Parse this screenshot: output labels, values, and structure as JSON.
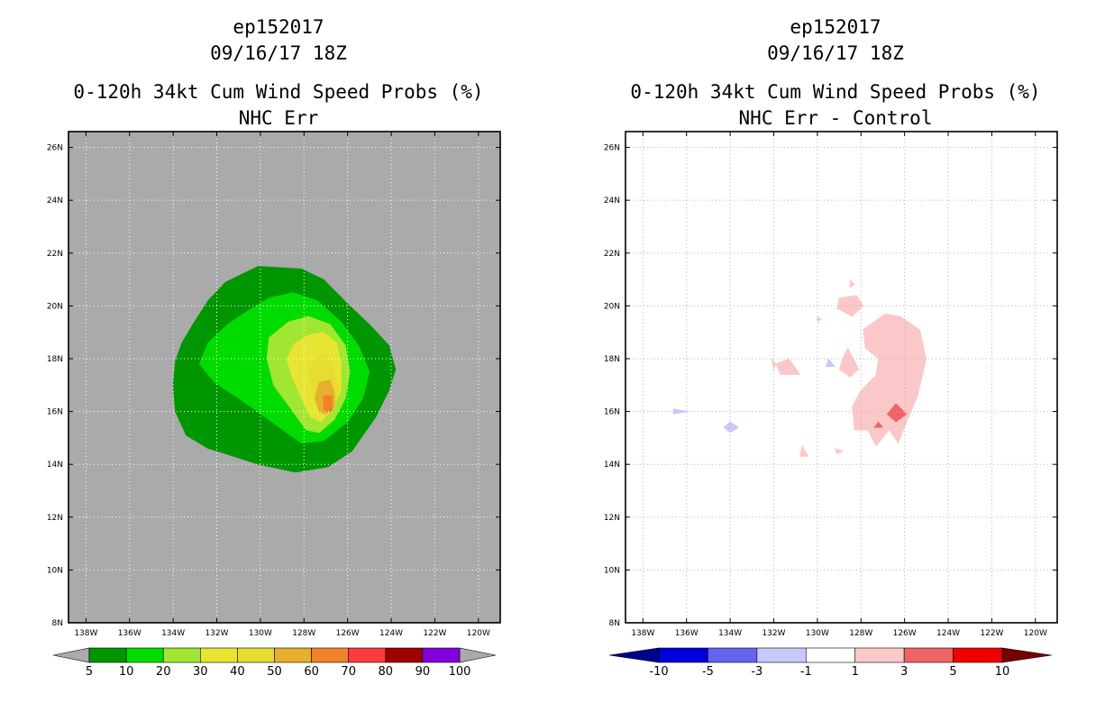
{
  "chart_data": [
    {
      "type": "contour-map",
      "storm_id": "ep152017",
      "datetime": "09/16/17 18Z",
      "title": "0-120h 34kt Cum Wind Speed Probs (%)",
      "subtitle": "NHC Err",
      "xlabel": "",
      "ylabel": "",
      "lon_ticks": [
        "138W",
        "136W",
        "134W",
        "132W",
        "130W",
        "128W",
        "126W",
        "124W",
        "122W",
        "120W"
      ],
      "lat_ticks": [
        "8N",
        "10N",
        "12N",
        "14N",
        "16N",
        "18N",
        "20N",
        "22N",
        "24N",
        "26N"
      ],
      "xlim_deg_east": [
        -138.8,
        -119
      ],
      "ylim_deg_north": [
        8,
        26.6
      ],
      "grid": true,
      "background_color": "#aaaaaa",
      "contour_levels": [
        5,
        10,
        20,
        30,
        40,
        50,
        60,
        70,
        80,
        90,
        100
      ],
      "colors": [
        "#009600",
        "#00dc00",
        "#a0e632",
        "#e6e632",
        "#e6dc32",
        "#e6af2d",
        "#f08228",
        "#fa3c3c",
        "#a00000",
        "#8200dc"
      ],
      "features": [
        {
          "level": 5,
          "polygon": [
            [
              -130.1,
              21.5
            ],
            [
              -128.1,
              21.4
            ],
            [
              -127.1,
              21.0
            ],
            [
              -125.9,
              20.0
            ],
            [
              -125.0,
              19.3
            ],
            [
              -124.1,
              18.5
            ],
            [
              -123.8,
              17.6
            ],
            [
              -124.1,
              16.8
            ],
            [
              -124.7,
              15.8
            ],
            [
              -125.8,
              14.5
            ],
            [
              -126.9,
              13.9
            ],
            [
              -128.4,
              13.7
            ],
            [
              -130.1,
              14.0
            ],
            [
              -131.6,
              14.4
            ],
            [
              -132.4,
              14.6
            ],
            [
              -133.4,
              15.1
            ],
            [
              -133.9,
              16.0
            ],
            [
              -134.0,
              17.0
            ],
            [
              -133.9,
              17.9
            ],
            [
              -133.6,
              18.6
            ],
            [
              -133.1,
              19.3
            ],
            [
              -132.4,
              20.2
            ],
            [
              -131.6,
              20.9
            ]
          ]
        },
        {
          "level": 10,
          "polygon": [
            [
              -129.6,
              20.3
            ],
            [
              -128.5,
              20.5
            ],
            [
              -127.4,
              20.2
            ],
            [
              -126.3,
              19.4
            ],
            [
              -125.5,
              18.5
            ],
            [
              -125.0,
              17.5
            ],
            [
              -125.3,
              16.5
            ],
            [
              -126.0,
              15.6
            ],
            [
              -127.1,
              14.9
            ],
            [
              -128.1,
              14.8
            ],
            [
              -128.8,
              15.2
            ],
            [
              -129.8,
              15.8
            ],
            [
              -131.0,
              16.5
            ],
            [
              -132.1,
              17.1
            ],
            [
              -132.8,
              17.8
            ],
            [
              -132.4,
              18.6
            ],
            [
              -131.5,
              19.3
            ],
            [
              -130.6,
              19.8
            ]
          ]
        },
        {
          "level": 20,
          "polygon": [
            [
              -128.7,
              19.4
            ],
            [
              -127.8,
              19.6
            ],
            [
              -126.8,
              19.3
            ],
            [
              -126.1,
              18.5
            ],
            [
              -125.9,
              17.5
            ],
            [
              -126.1,
              16.5
            ],
            [
              -126.6,
              15.7
            ],
            [
              -127.3,
              15.2
            ],
            [
              -127.9,
              15.3
            ],
            [
              -128.6,
              16.1
            ],
            [
              -129.4,
              17.0
            ],
            [
              -129.7,
              18.0
            ],
            [
              -129.6,
              18.8
            ]
          ]
        },
        {
          "level": 30,
          "polygon": [
            [
              -127.8,
              18.9
            ],
            [
              -127.1,
              19.0
            ],
            [
              -126.5,
              18.6
            ],
            [
              -126.3,
              17.8
            ],
            [
              -126.3,
              16.8
            ],
            [
              -126.7,
              16.1
            ],
            [
              -127.2,
              15.6
            ],
            [
              -127.7,
              15.8
            ],
            [
              -128.1,
              16.5
            ],
            [
              -128.5,
              17.2
            ],
            [
              -128.8,
              18.0
            ],
            [
              -128.4,
              18.6
            ]
          ]
        },
        {
          "level": 40,
          "polygon": [
            [
              -127.5,
              18.0
            ],
            [
              -127.0,
              18.2
            ],
            [
              -126.6,
              17.5
            ],
            [
              -126.4,
              16.8
            ],
            [
              -126.6,
              16.2
            ],
            [
              -127.0,
              15.8
            ],
            [
              -127.4,
              16.1
            ],
            [
              -127.6,
              16.7
            ],
            [
              -127.8,
              17.4
            ]
          ]
        },
        {
          "level": 50,
          "polygon": [
            [
              -127.3,
              17.1
            ],
            [
              -126.8,
              17.2
            ],
            [
              -126.6,
              16.7
            ],
            [
              -126.6,
              16.2
            ],
            [
              -127.0,
              15.9
            ],
            [
              -127.3,
              16.0
            ],
            [
              -127.5,
              16.5
            ]
          ]
        },
        {
          "level": 60,
          "polygon": [
            [
              -127.1,
              16.6
            ],
            [
              -126.7,
              16.6
            ],
            [
              -126.7,
              16.0
            ],
            [
              -127.1,
              16.0
            ]
          ]
        }
      ],
      "colorbar": {
        "labels": [
          "5",
          "10",
          "20",
          "30",
          "40",
          "50",
          "60",
          "70",
          "80",
          "90",
          "100"
        ],
        "under_color": "#aaaaaa",
        "over_color": "#aaaaaa"
      }
    },
    {
      "type": "contour-map",
      "storm_id": "ep152017",
      "datetime": "09/16/17 18Z",
      "title": "0-120h 34kt Cum Wind Speed Probs (%)",
      "subtitle": "NHC Err - Control",
      "xlabel": "",
      "ylabel": "",
      "lon_ticks": [
        "138W",
        "136W",
        "134W",
        "132W",
        "130W",
        "128W",
        "126W",
        "124W",
        "122W",
        "120W"
      ],
      "lat_ticks": [
        "8N",
        "10N",
        "12N",
        "14N",
        "16N",
        "18N",
        "20N",
        "22N",
        "24N",
        "26N"
      ],
      "xlim_deg_east": [
        -138.8,
        -119
      ],
      "ylim_deg_north": [
        8,
        26.6
      ],
      "grid": true,
      "background_color": "#ffffff",
      "contour_levels": [
        -10,
        -5,
        -3,
        -1,
        1,
        3,
        5,
        10
      ],
      "colors": [
        "#0000dc",
        "#6464f0",
        "#c8c8fa",
        "#ffffff",
        "#fac8c8",
        "#f06464",
        "#f00000"
      ],
      "features": [
        {
          "level": 1,
          "polygon": [
            [
              -126.2,
              19.6
            ],
            [
              -125.3,
              19.1
            ],
            [
              -125.0,
              18.0
            ],
            [
              -125.2,
              17.3
            ],
            [
              -125.4,
              16.6
            ],
            [
              -125.8,
              15.8
            ],
            [
              -126.3,
              14.8
            ],
            [
              -126.7,
              15.3
            ],
            [
              -127.3,
              14.7
            ],
            [
              -127.7,
              15.3
            ],
            [
              -128.3,
              15.3
            ],
            [
              -128.4,
              16.2
            ],
            [
              -128.0,
              16.8
            ],
            [
              -127.3,
              17.4
            ],
            [
              -127.2,
              18.0
            ],
            [
              -127.8,
              18.4
            ],
            [
              -127.9,
              19.1
            ],
            [
              -126.9,
              19.7
            ]
          ]
        },
        {
          "level": 1,
          "polygon": [
            [
              -129.0,
              20.3
            ],
            [
              -128.2,
              20.4
            ],
            [
              -127.9,
              20.0
            ],
            [
              -128.4,
              19.6
            ],
            [
              -129.1,
              19.9
            ]
          ]
        },
        {
          "level": 1,
          "polygon": [
            [
              -128.6,
              18.4
            ],
            [
              -128.1,
              17.6
            ],
            [
              -128.5,
              17.3
            ],
            [
              -129.0,
              17.6
            ],
            [
              -128.8,
              18.1
            ]
          ]
        },
        {
          "level": 1,
          "polygon": [
            [
              -131.3,
              18.0
            ],
            [
              -130.8,
              17.4
            ],
            [
              -131.7,
              17.4
            ],
            [
              -131.9,
              17.8
            ]
          ]
        },
        {
          "level": 1,
          "polygon": [
            [
              -130.7,
              14.7
            ],
            [
              -130.4,
              14.3
            ],
            [
              -130.8,
              14.3
            ]
          ]
        },
        {
          "level": 1,
          "polygon": [
            [
              -129.2,
              14.6
            ],
            [
              -128.8,
              14.5
            ],
            [
              -129.1,
              14.4
            ]
          ]
        },
        {
          "level": 1,
          "polygon": [
            [
              -128.5,
              21.0
            ],
            [
              -128.3,
              20.8
            ],
            [
              -128.5,
              20.7
            ]
          ]
        },
        {
          "level": 1,
          "polygon": [
            [
              -130.0,
              19.6
            ],
            [
              -129.8,
              19.5
            ],
            [
              -130.0,
              19.4
            ]
          ]
        },
        {
          "level": 1,
          "polygon": [
            [
              -132.1,
              18.0
            ],
            [
              -131.9,
              17.8
            ],
            [
              -132.0,
              17.6
            ]
          ]
        },
        {
          "level": 3,
          "polygon": [
            [
              -126.4,
              16.3
            ],
            [
              -125.9,
              15.9
            ],
            [
              -126.4,
              15.6
            ],
            [
              -126.8,
              15.9
            ]
          ]
        },
        {
          "level": 3,
          "polygon": [
            [
              -127.2,
              15.6
            ],
            [
              -127.0,
              15.4
            ],
            [
              -127.4,
              15.4
            ]
          ]
        },
        {
          "level": -1,
          "polygon": [
            [
              -129.5,
              18.0
            ],
            [
              -129.2,
              17.7
            ],
            [
              -129.6,
              17.7
            ]
          ]
        },
        {
          "level": -1,
          "polygon": [
            [
              -134.0,
              15.6
            ],
            [
              -133.6,
              15.4
            ],
            [
              -134.0,
              15.2
            ],
            [
              -134.3,
              15.4
            ]
          ]
        },
        {
          "level": -1,
          "polygon": [
            [
              -136.6,
              16.1
            ],
            [
              -135.9,
              16.0
            ],
            [
              -136.6,
              15.9
            ]
          ]
        }
      ],
      "colorbar": {
        "labels": [
          "-10",
          "-5",
          "-3",
          "-1",
          "1",
          "3",
          "5",
          "10"
        ],
        "under_color": "#00008c",
        "over_color": "#780000"
      }
    }
  ]
}
